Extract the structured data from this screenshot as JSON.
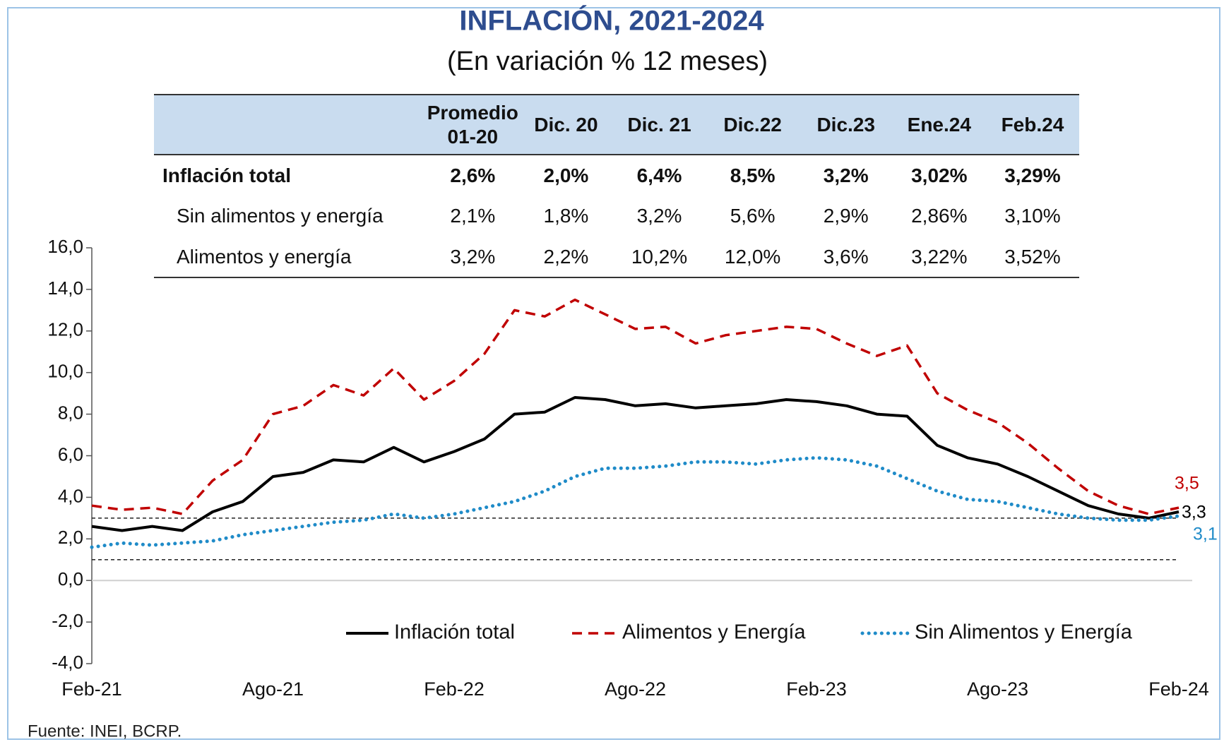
{
  "chart_data": {
    "type": "line",
    "title": "INFLACIÓN, 2021-2024",
    "subtitle": "(En variación % 12 meses)",
    "source": "Fuente: INEI, BCRP.",
    "categories": [
      "Feb-21",
      null,
      null,
      null,
      null,
      null,
      "Ago-21",
      null,
      null,
      null,
      null,
      null,
      "Feb-22",
      null,
      null,
      null,
      null,
      null,
      "Ago-22",
      null,
      null,
      null,
      null,
      null,
      "Feb-23",
      null,
      null,
      null,
      null,
      null,
      "Ago-23",
      null,
      null,
      null,
      null,
      null,
      "Feb-24"
    ],
    "series": [
      {
        "name": "Inflación total",
        "color": "#000000",
        "style": "solid",
        "values": [
          2.6,
          2.4,
          2.6,
          2.4,
          3.3,
          3.8,
          5.0,
          5.2,
          5.8,
          5.7,
          6.4,
          5.7,
          6.2,
          6.8,
          8.0,
          8.1,
          8.8,
          8.7,
          8.4,
          8.5,
          8.3,
          8.4,
          8.5,
          8.7,
          8.6,
          8.4,
          8.0,
          7.9,
          6.5,
          5.9,
          5.6,
          5.0,
          4.3,
          3.6,
          3.2,
          3.0,
          3.3
        ],
        "value_labels": [
          null,
          null,
          null,
          null,
          null,
          null,
          null,
          null,
          null,
          null,
          null,
          null,
          null,
          null,
          null,
          null,
          null,
          null,
          null,
          null,
          null,
          null,
          null,
          null,
          null,
          null,
          null,
          null,
          null,
          null,
          null,
          null,
          null,
          null,
          null,
          null,
          "3,3"
        ]
      },
      {
        "name": "Alimentos y Energía",
        "color": "#c00000",
        "style": "dashed",
        "values": [
          3.6,
          3.4,
          3.5,
          3.2,
          4.8,
          5.8,
          8.0,
          8.4,
          9.4,
          8.9,
          10.2,
          8.7,
          9.6,
          10.9,
          13.0,
          12.7,
          13.5,
          12.8,
          12.1,
          12.2,
          11.4,
          11.8,
          12.0,
          12.2,
          12.1,
          11.4,
          10.8,
          11.3,
          9.0,
          8.2,
          7.6,
          6.6,
          5.4,
          4.3,
          3.6,
          3.2,
          3.5
        ],
        "value_labels": [
          null,
          null,
          null,
          null,
          null,
          null,
          null,
          null,
          null,
          null,
          null,
          null,
          null,
          null,
          null,
          null,
          null,
          null,
          null,
          null,
          null,
          null,
          null,
          null,
          null,
          null,
          null,
          null,
          null,
          null,
          null,
          null,
          null,
          null,
          null,
          null,
          "3,5"
        ]
      },
      {
        "name": "Sin Alimentos y Energía",
        "color": "#1f8bc8",
        "style": "dotted",
        "values": [
          1.6,
          1.8,
          1.7,
          1.8,
          1.9,
          2.2,
          2.4,
          2.6,
          2.8,
          2.9,
          3.2,
          3.0,
          3.2,
          3.5,
          3.8,
          4.3,
          5.0,
          5.4,
          5.4,
          5.5,
          5.7,
          5.7,
          5.6,
          5.8,
          5.9,
          5.8,
          5.5,
          4.9,
          4.3,
          3.9,
          3.8,
          3.5,
          3.2,
          3.0,
          2.9,
          2.9,
          3.1
        ],
        "value_labels": [
          null,
          null,
          null,
          null,
          null,
          null,
          null,
          null,
          null,
          null,
          null,
          null,
          null,
          null,
          null,
          null,
          null,
          null,
          null,
          null,
          null,
          null,
          null,
          null,
          null,
          null,
          null,
          null,
          null,
          null,
          null,
          null,
          null,
          null,
          null,
          null,
          "3,1"
        ]
      }
    ],
    "ylim": [
      -4,
      16
    ],
    "yticks": [
      {
        "value": -4,
        "label": "-4,0"
      },
      {
        "value": -2,
        "label": "-2,0"
      },
      {
        "value": 0,
        "label": "0,0"
      },
      {
        "value": 2,
        "label": "2,0"
      },
      {
        "value": 4,
        "label": "4,0"
      },
      {
        "value": 6,
        "label": "6,0"
      },
      {
        "value": 8,
        "label": "8,0"
      },
      {
        "value": 10,
        "label": "10,0"
      },
      {
        "value": 12,
        "label": "12,0"
      },
      {
        "value": 14,
        "label": "14,0"
      },
      {
        "value": 16,
        "label": "16,0"
      }
    ],
    "reference_lines": [
      1,
      3
    ],
    "zero_line": true,
    "legend": "bottom"
  },
  "table": {
    "header": [
      "Promedio 01-20",
      "Dic. 20",
      "Dic. 21",
      "Dic.22",
      "Dic.23",
      "Ene.24",
      "Feb.24"
    ],
    "rows": [
      [
        "Inflación total",
        "2,6%",
        "2,0%",
        "6,4%",
        "8,5%",
        "3,2%",
        "3,02%",
        "3,29%"
      ],
      [
        "Sin alimentos y energía",
        "2,1%",
        "1,8%",
        "3,2%",
        "5,6%",
        "2,9%",
        "2,86%",
        "3,10%"
      ],
      [
        "Alimentos y energía",
        "3,2%",
        "2,2%",
        "10,2%",
        "12,0%",
        "3,6%",
        "3,22%",
        "3,52%"
      ]
    ]
  }
}
